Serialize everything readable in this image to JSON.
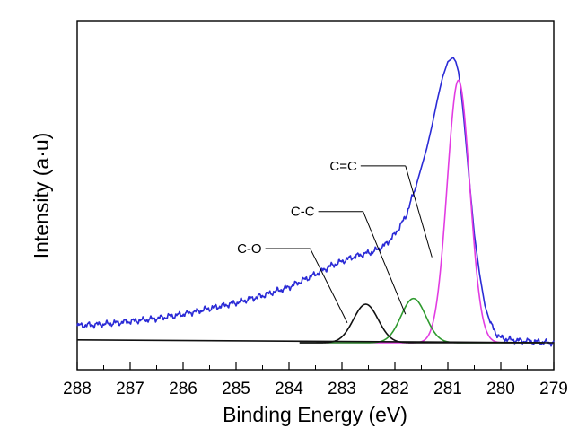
{
  "chart_data": {
    "type": "line",
    "xlabel": "Binding Energy (eV)",
    "ylabel": "Intensity (a·u)",
    "xlim": [
      288,
      279
    ],
    "x_reversed": true,
    "x_ticks": [
      288,
      287,
      286,
      285,
      284,
      283,
      282,
      281,
      280,
      279
    ],
    "y_ticks_shown": false,
    "grid": false,
    "legend": "none",
    "series": [
      {
        "color": "#2b2bd6",
        "role": "raw spectrum",
        "x": [
          288,
          287.5,
          287,
          286.5,
          286,
          285.5,
          285,
          284.5,
          284,
          283.5,
          283.2,
          283,
          282.8,
          282.6,
          282.4,
          282.2,
          282,
          281.8,
          281.6,
          281.4,
          281.3,
          281.2,
          281.1,
          281,
          280.9,
          280.85,
          280.8,
          280.75,
          280.7,
          280.6,
          280.5,
          280.4,
          280.3,
          280.2,
          280.1,
          280,
          279.8,
          279.5,
          279
        ],
        "y": [
          0.06,
          0.065,
          0.075,
          0.085,
          0.1,
          0.12,
          0.14,
          0.165,
          0.195,
          0.24,
          0.27,
          0.285,
          0.3,
          0.31,
          0.32,
          0.34,
          0.38,
          0.44,
          0.55,
          0.68,
          0.76,
          0.85,
          0.93,
          0.985,
          1.0,
          0.985,
          0.95,
          0.88,
          0.79,
          0.58,
          0.38,
          0.24,
          0.13,
          0.07,
          0.035,
          0.017,
          0.01,
          0.005,
          0.0
        ]
      },
      {
        "color": "#e23ce2",
        "role": "C=C component",
        "center": 280.8,
        "height": 0.92,
        "fwhm": 0.5
      },
      {
        "color": "#2e9a2e",
        "role": "C-C component",
        "center": 281.65,
        "height": 0.155,
        "fwhm": 0.55
      },
      {
        "color": "#111111",
        "role": "C-O component",
        "center": 282.55,
        "height": 0.135,
        "fwhm": 0.55
      },
      {
        "color": "#111111",
        "role": "baseline",
        "x": [
          288,
          279
        ],
        "y": [
          0.01,
          0.0
        ]
      }
    ],
    "annotations": [
      {
        "text": "C=C",
        "line_from": [
          281.8,
          0.62
        ],
        "line_to": [
          281.3,
          0.3
        ]
      },
      {
        "text": "C-C",
        "line_from": [
          282.6,
          0.46
        ],
        "line_to": [
          281.8,
          0.1
        ]
      },
      {
        "text": "C-O",
        "line_from": [
          283.6,
          0.33
        ],
        "line_to": [
          282.9,
          0.07
        ]
      }
    ]
  }
}
